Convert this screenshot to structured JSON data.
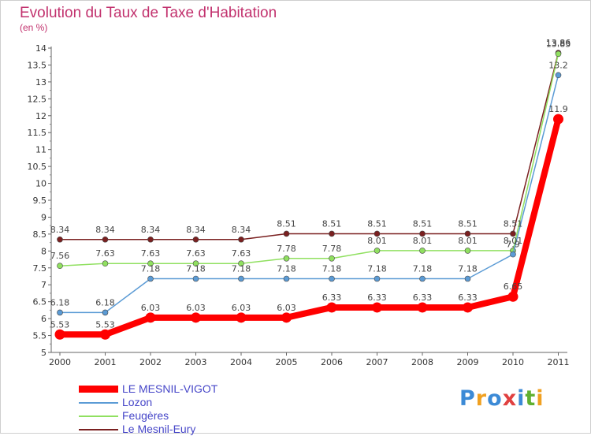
{
  "chart_data": {
    "type": "line",
    "title": "Evolution du Taux de Taxe d'Habitation",
    "subtitle": "(en %)",
    "xlabel": "",
    "ylabel": "",
    "categories": [
      "2000",
      "2001",
      "2002",
      "2003",
      "2004",
      "2005",
      "2006",
      "2007",
      "2008",
      "2009",
      "2010",
      "2011"
    ],
    "ylim": [
      5,
      14
    ],
    "yticks": [
      "5",
      "5.5",
      "6",
      "6.5",
      "7",
      "7.5",
      "8",
      "8.5",
      "9",
      "9.5",
      "10",
      "10.5",
      "11",
      "11.5",
      "12",
      "12.5",
      "13",
      "13.5",
      "14"
    ],
    "grid": false,
    "legend_position": "bottom-left",
    "series": [
      {
        "name": "LE MESNIL-VIGOT",
        "color": "#ff0000",
        "values": [
          5.53,
          5.53,
          6.03,
          6.03,
          6.03,
          6.03,
          6.33,
          6.33,
          6.33,
          6.33,
          6.65,
          11.9
        ],
        "labels": [
          "5.53",
          "5.53",
          "6.03",
          "6.03",
          "6.03",
          "6.03",
          "6.33",
          "6.33",
          "6.33",
          "6.33",
          "6.65",
          "11.9"
        ]
      },
      {
        "name": "Lozon",
        "color": "#5b9bd5",
        "values": [
          6.18,
          6.18,
          7.18,
          7.18,
          7.18,
          7.18,
          7.18,
          7.18,
          7.18,
          7.18,
          7.9,
          13.2
        ],
        "labels": [
          "6.18",
          "6.18",
          "7.18",
          "7.18",
          "7.18",
          "7.18",
          "7.18",
          "7.18",
          "7.18",
          "7.18",
          "7.9",
          "13.2"
        ]
      },
      {
        "name": "Feugères",
        "color": "#90e060",
        "values": [
          7.56,
          7.63,
          7.63,
          7.63,
          7.63,
          7.78,
          7.78,
          8.01,
          8.01,
          8.01,
          8.01,
          13.83
        ],
        "labels": [
          "7.56",
          "7.63",
          "7.63",
          "7.63",
          "7.63",
          "7.78",
          "7.78",
          "8.01",
          "8.01",
          "8.01",
          "8.01",
          "13.83"
        ]
      },
      {
        "name": "Le Mesnil-Eury",
        "color": "#7a2020",
        "values": [
          8.34,
          8.34,
          8.34,
          8.34,
          8.34,
          8.51,
          8.51,
          8.51,
          8.51,
          8.51,
          8.51,
          13.86
        ],
        "labels": [
          "8.34",
          "8.34",
          "8.34",
          "8.34",
          "8.34",
          "8.51",
          "8.51",
          "8.51",
          "8.51",
          "8.51",
          "8.51",
          "13.86"
        ]
      }
    ]
  },
  "logo": {
    "letters": [
      "P",
      "r",
      "o",
      "x",
      "i",
      "t",
      "i"
    ],
    "colors": [
      "#3c8ad6",
      "#f0a020",
      "#3c8ad6",
      "#e04040",
      "#3c8ad6",
      "#60b030",
      "#f0a020"
    ]
  }
}
